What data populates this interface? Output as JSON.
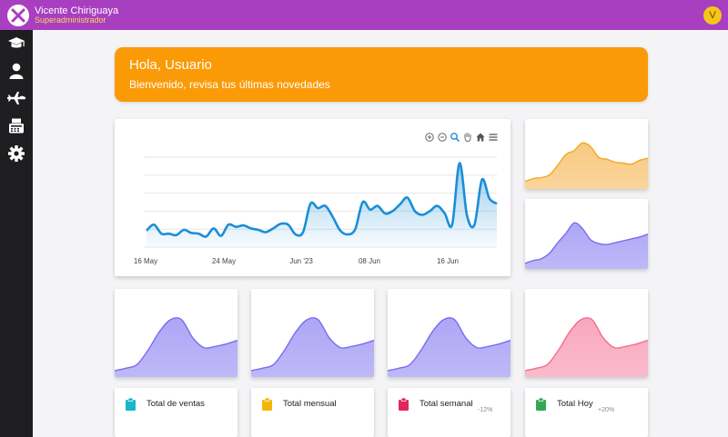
{
  "header": {
    "user_name": "Vicente Chiriguaya",
    "user_role": "Superadministrador",
    "avatar_letter": "V",
    "colors": {
      "bar": "#a83fc0",
      "role": "#ffd45a",
      "avatar": "#f5c518"
    }
  },
  "sidebar": {
    "items": [
      {
        "icon": "graduation-cap-icon"
      },
      {
        "icon": "user-icon"
      },
      {
        "icon": "airplane-icon"
      },
      {
        "icon": "fax-icon"
      },
      {
        "icon": "gear-icon"
      }
    ]
  },
  "banner": {
    "title": "Hola, Usuario",
    "subtitle": "Bienvenido, revisa tus últimas novedades",
    "color": "#fb9a07"
  },
  "main_chart": {
    "toolbar": [
      "zoom-in-icon",
      "zoom-out-icon",
      "zoom-selection-icon",
      "pan-hand-icon",
      "home-icon",
      "menu-icon"
    ],
    "chart_data": {
      "type": "area",
      "x_ticks": [
        "16 May",
        "24 May",
        "Jun '23",
        "08 Jun",
        "16 Jun"
      ],
      "values": [
        22,
        30,
        18,
        18,
        16,
        23,
        19,
        18,
        14,
        25,
        15,
        30,
        27,
        29,
        25,
        23,
        20,
        25,
        31,
        30,
        17,
        20,
        58,
        52,
        55,
        40,
        22,
        17,
        24,
        60,
        50,
        55,
        45,
        48,
        57,
        66,
        48,
        43,
        48,
        55,
        45,
        30,
        112,
        42,
        30,
        90,
        65,
        58
      ],
      "color": "#1a8ed8",
      "grid": true
    }
  },
  "sparklines": {
    "orange": {
      "color": "#f5a623",
      "fill": "#f8c77a",
      "values": [
        5,
        8,
        9,
        12,
        22,
        33,
        37,
        45,
        41,
        30,
        28,
        25,
        24,
        23,
        27,
        29
      ]
    },
    "purple_right": {
      "color": "#7b6cf0",
      "fill": "#a9a1f5",
      "values": [
        3,
        6,
        8,
        14,
        25,
        35,
        46,
        40,
        28,
        24,
        23,
        25,
        27,
        29,
        31,
        34
      ]
    },
    "small_1": {
      "color": "#7b6cf0",
      "fill": "#a9a1f5",
      "values": [
        3,
        5,
        8,
        20,
        35,
        45,
        45,
        30,
        22,
        23,
        25,
        28
      ]
    },
    "small_2": {
      "color": "#7b6cf0",
      "fill": "#a9a1f5",
      "values": [
        3,
        5,
        8,
        20,
        35,
        45,
        45,
        30,
        22,
        23,
        25,
        28
      ]
    },
    "small_3": {
      "color": "#7b6cf0",
      "fill": "#a9a1f5",
      "values": [
        3,
        5,
        8,
        20,
        35,
        45,
        45,
        30,
        22,
        23,
        25,
        28
      ]
    },
    "small_4": {
      "color": "#f56c8f",
      "fill": "#f9a3bb",
      "values": [
        3,
        5,
        8,
        20,
        35,
        45,
        45,
        30,
        22,
        23,
        25,
        28
      ]
    }
  },
  "stats": [
    {
      "label": "Total de ventas",
      "pct": "",
      "icon": "clipboard-icon",
      "color": "#19b5c9"
    },
    {
      "label": "Total mensual",
      "pct": "",
      "icon": "clipboard-icon",
      "color": "#f3b600"
    },
    {
      "label": "Total semanal",
      "pct": "-12%",
      "icon": "clipboard-icon",
      "color": "#e2265a"
    },
    {
      "label": "Total Hoy",
      "pct": "+20%",
      "icon": "clipboard-icon",
      "color": "#32a852"
    }
  ]
}
